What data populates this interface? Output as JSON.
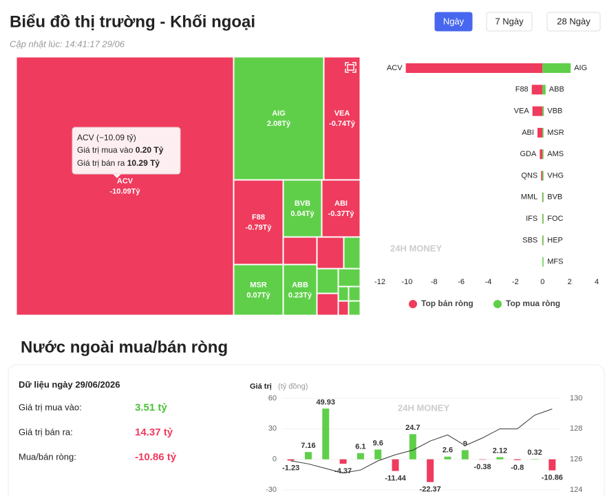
{
  "header": {
    "title": "Biểu đồ thị trường - Khối ngoại",
    "updated": "Cập nhật lúc: 14:41:17 29/06",
    "tabs": [
      "Ngày",
      "7 Ngày",
      "28 Ngày"
    ],
    "active_tab": 0
  },
  "watermark": "24H MONEY",
  "treemap": {
    "tiles": [
      {
        "name": "ACV",
        "value": -10.09,
        "value_label": "-10.09Tỷ"
      },
      {
        "name": "AIG",
        "value": 2.08,
        "value_label": "2.08Tỷ"
      },
      {
        "name": "VEA",
        "value": -0.74,
        "value_label": "-0.74Tỷ"
      },
      {
        "name": "F88",
        "value": -0.79,
        "value_label": "-0.79Tỷ"
      },
      {
        "name": "BVB",
        "value": 0.04,
        "value_label": "0.04Tỷ"
      },
      {
        "name": "ABI",
        "value": -0.37,
        "value_label": "-0.37Tỷ"
      },
      {
        "name": "MSR",
        "value": 0.07,
        "value_label": "0.07Tỷ"
      },
      {
        "name": "ABB",
        "value": 0.23,
        "value_label": "0.23Tỷ"
      }
    ],
    "tooltip": {
      "title": "ACV (−10.09 tỷ)",
      "rows": [
        {
          "label": "Giá trị mua vào",
          "value": "0.20 Tỷ"
        },
        {
          "label": "Giá trị bán ra",
          "value": "10.29 Tỷ"
        }
      ]
    }
  },
  "top_chart": {
    "type": "bar",
    "orientation": "horizontal",
    "sell": {
      "name": "Top bán ròng",
      "color": "#ef3b5d",
      "categories": [
        "ACV",
        "F88",
        "VEA",
        "ABI",
        "GDA",
        "QNS",
        "MML",
        "IFS",
        "SBS"
      ],
      "values": [
        -10.09,
        -0.79,
        -0.74,
        -0.37,
        -0.2,
        -0.1,
        -0.02,
        -0.01,
        -0.01
      ]
    },
    "buy": {
      "name": "Top mua ròng",
      "color": "#5fcf4a",
      "categories": [
        "AIG",
        "ABB",
        "VBB",
        "MSR",
        "AMS",
        "VHG",
        "BVB",
        "FOC",
        "HEP",
        "MFS"
      ],
      "values": [
        2.08,
        0.23,
        0.1,
        0.07,
        0.06,
        0.04,
        0.04,
        0.01,
        0.01,
        0.01
      ]
    },
    "xlim": [
      -12,
      4
    ],
    "xticks": [
      -12,
      -10,
      -8,
      -6,
      -4,
      -2,
      0,
      2,
      4
    ]
  },
  "summary": {
    "title": "Nước ngoài mua/bán ròng",
    "date": "Dữ liệu ngày 29/06/2026",
    "rows": [
      {
        "label": "Giá trị mua vào:",
        "value": "3.51 tỷ",
        "color": "#4cc23a"
      },
      {
        "label": "Giá trị bán ra:",
        "value": "14.37 tỷ",
        "color": "#ef3b5d"
      },
      {
        "label": "Mua/bán ròng:",
        "value": "-10.86 tỷ",
        "color": "#ef3b5d"
      }
    ]
  },
  "net_chart": {
    "type": "bar",
    "y_label": "Giá trị",
    "y_unit": "(tỷ đồng)",
    "values": [
      -1.23,
      7.16,
      49.93,
      -4.37,
      6.1,
      9.6,
      -11.44,
      24.7,
      -22.37,
      2.6,
      9,
      -0.38,
      2.12,
      -0.8,
      0.32,
      -10.86
    ],
    "positive_color": "#5fcf4a",
    "negative_color": "#ef3b5d",
    "ylim": [
      -30,
      60
    ],
    "yticks": [
      -30,
      0,
      30,
      60
    ],
    "line": {
      "axis": "y2",
      "color": "#333333",
      "values": [
        125.9,
        125.7,
        125.4,
        125.1,
        125.3,
        125.9,
        126.3,
        126.6,
        127.2,
        127.6,
        126.9,
        127.4,
        128.0,
        128.0,
        128.9,
        129.3
      ]
    },
    "y2lim": [
      124,
      130
    ],
    "y2ticks": [
      124,
      126,
      128,
      130
    ]
  }
}
